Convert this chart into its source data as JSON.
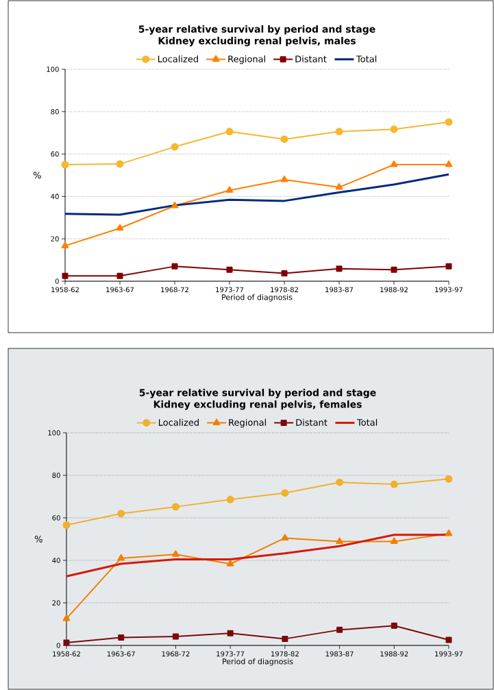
{
  "chart_data": [
    {
      "type": "line",
      "title": "5-year relative survival by period and stage",
      "subtitle": "Kidney excluding renal pelvis, males",
      "xlabel": "Period of diagnosis",
      "ylabel": "%",
      "categories": [
        "1958-62",
        "1963-67",
        "1968-72",
        "1973-77",
        "1978-82",
        "1983-87",
        "1988-92",
        "1993-97"
      ],
      "series": [
        {
          "name": "Localized",
          "color": "#f5b82e",
          "marker": "circle",
          "values": [
            55,
            55.3,
            63.4,
            70.6,
            67,
            70.6,
            71.7,
            75.1
          ]
        },
        {
          "name": "Regional",
          "color": "#ff7f00",
          "marker": "triangle",
          "values": [
            16.7,
            25,
            35.6,
            42.9,
            47.9,
            44.3,
            55,
            55
          ]
        },
        {
          "name": "Distant",
          "color": "#800000",
          "marker": "square",
          "values": [
            2.5,
            2.5,
            7,
            5.4,
            3.7,
            5.9,
            5.4,
            7
          ]
        },
        {
          "name": "Total",
          "color": "#002a7f",
          "marker": "none",
          "values": [
            31.8,
            31.4,
            35.8,
            38.4,
            37.9,
            41.9,
            45.6,
            50.4
          ]
        }
      ],
      "ylim": [
        0,
        100
      ],
      "yticks": [
        0,
        20,
        40,
        60,
        80,
        100
      ],
      "grid": "y",
      "legend": "top"
    },
    {
      "type": "line",
      "title": "5-year relative survival by period and stage",
      "subtitle": "Kidney excluding renal pelvis, females",
      "xlabel": "Period of diagnosis",
      "ylabel": "%",
      "categories": [
        "1958-62",
        "1963-67",
        "1968-72",
        "1973-77",
        "1978-82",
        "1983-87",
        "1988-92",
        "1993-97"
      ],
      "series": [
        {
          "name": "Localized",
          "color": "#f0b030",
          "marker": "circle",
          "values": [
            56.6,
            62,
            65.2,
            68.6,
            71.7,
            76.7,
            75.8,
            78.3
          ]
        },
        {
          "name": "Regional",
          "color": "#f08000",
          "marker": "triangle",
          "values": [
            12.6,
            41,
            42.8,
            38.3,
            50.5,
            48.9,
            48.9,
            52.6
          ]
        },
        {
          "name": "Distant",
          "color": "#7a0a0a",
          "marker": "square",
          "values": [
            1.3,
            3.7,
            4.2,
            5.7,
            3.1,
            7.3,
            9.3,
            2.6
          ]
        },
        {
          "name": "Total",
          "color": "#d41a0a",
          "marker": "none",
          "values": [
            32.5,
            38.4,
            40.5,
            40.5,
            43.3,
            46.7,
            52,
            52
          ]
        }
      ],
      "ylim": [
        0,
        100
      ],
      "yticks": [
        0,
        20,
        40,
        60,
        80,
        100
      ],
      "grid": "y",
      "legend": "top"
    }
  ]
}
